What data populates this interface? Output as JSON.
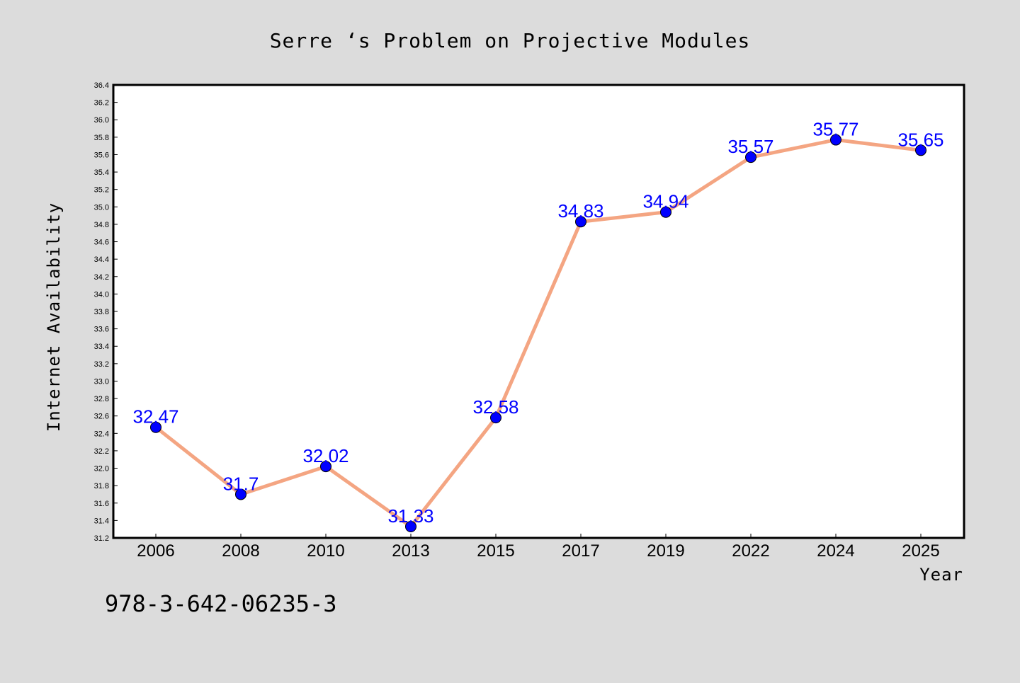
{
  "chart_data": {
    "type": "line",
    "title": "Serre ‘s Problem on Projective Modules",
    "xlabel": "Year",
    "ylabel": "Internet Availability",
    "categories": [
      "2006",
      "2008",
      "2010",
      "2013",
      "2015",
      "2017",
      "2019",
      "2022",
      "2024",
      "2025"
    ],
    "series": [
      {
        "values": [
          32.47,
          31.7,
          32.02,
          31.33,
          32.58,
          34.83,
          34.94,
          35.57,
          35.77,
          35.65
        ],
        "labels": [
          "32.47",
          "31.7",
          "32.02",
          "31.33",
          "32.58",
          "34.83",
          "34.94",
          "35.57",
          "35.77",
          "35.65"
        ],
        "line_color": "#f4a582",
        "marker_color": "#0000ff"
      }
    ],
    "ylim": [
      31.2,
      36.4
    ],
    "yticks": [
      "31.2",
      "31.4",
      "31.6",
      "31.8",
      "32.0",
      "32.2",
      "32.4",
      "32.6",
      "32.8",
      "33.0",
      "33.2",
      "33.4",
      "33.6",
      "33.8",
      "34.0",
      "34.2",
      "34.4",
      "34.6",
      "34.8",
      "35.0",
      "35.2",
      "35.4",
      "35.6",
      "35.8",
      "36.0",
      "36.2",
      "36.4"
    ],
    "grid": false,
    "background_color": "#dcdcdc",
    "plot_background_color": "#ffffff",
    "annotation": "978-3-642-06235-3"
  }
}
